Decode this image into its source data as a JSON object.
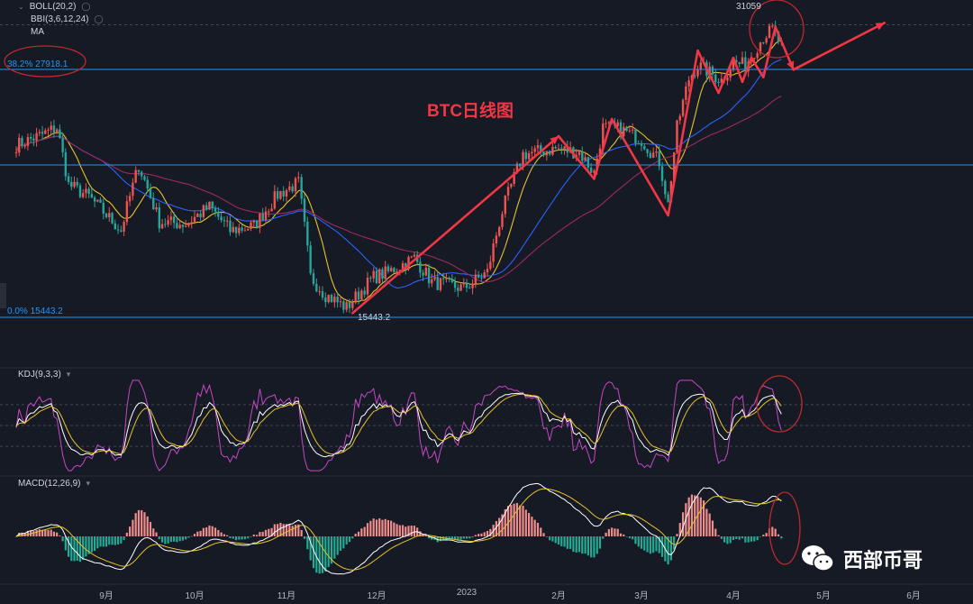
{
  "indicators": {
    "boll": "BOLL(20,2)",
    "bbi": "BBI(3,6,12,24)",
    "ma": "MA",
    "kdj": "KDJ(9,3,3)",
    "macd": "MACD(12,26,9)"
  },
  "annotation": {
    "title": "BTC日线图",
    "high_label": "31059",
    "low_label": "15443.2",
    "fib_382": "38.2% 27918.1",
    "fib_0": "0.0% 15443.2",
    "watermark": "西部币哥"
  },
  "colors": {
    "up": "#ef5350",
    "down": "#26a69a",
    "boll_mid": "#e6c229",
    "bbi": "#2962ff",
    "ma": "#9c2a5d",
    "fib": "#2196f3",
    "annotation": "#f23645",
    "k": "#ffffff",
    "d": "#e6c229",
    "j": "#c548c5"
  },
  "chart_data": {
    "type": "candlestick",
    "x_ticks": [
      "9月",
      "10月",
      "11月",
      "12月",
      "2023",
      "2月",
      "3月",
      "4月",
      "5月",
      "6月"
    ],
    "fib_levels": [
      {
        "label": "38.2%",
        "value": 27918.1
      },
      {
        "label": "0.0%",
        "value": 15443.2
      }
    ],
    "high": 31059,
    "low": 15443.2,
    "close_path": [
      [
        "2022-08-01",
        23300
      ],
      [
        "2022-08-10",
        23900
      ],
      [
        "2022-08-15",
        24300
      ],
      [
        "2022-08-19",
        21200
      ],
      [
        "2022-08-26",
        20600
      ],
      [
        "2022-09-06",
        19000
      ],
      [
        "2022-09-12",
        22200
      ],
      [
        "2022-09-19",
        19400
      ],
      [
        "2022-09-28",
        19300
      ],
      [
        "2022-10-06",
        20100
      ],
      [
        "2022-10-13",
        19000
      ],
      [
        "2022-10-21",
        19200
      ],
      [
        "2022-10-29",
        20700
      ],
      [
        "2022-11-05",
        21300
      ],
      [
        "2022-11-09",
        17000
      ],
      [
        "2022-11-14",
        16300
      ],
      [
        "2022-11-21",
        15800
      ],
      [
        "2022-11-30",
        17000
      ],
      [
        "2022-12-05",
        17200
      ],
      [
        "2022-12-14",
        17800
      ],
      [
        "2022-12-20",
        16800
      ],
      [
        "2022-12-31",
        16550
      ],
      [
        "2023-01-08",
        17200
      ],
      [
        "2023-01-13",
        19900
      ],
      [
        "2023-01-20",
        22800
      ],
      [
        "2023-01-31",
        23100
      ],
      [
        "2023-02-08",
        22900
      ],
      [
        "2023-02-13",
        21800
      ],
      [
        "2023-02-16",
        24300
      ],
      [
        "2023-02-22",
        24200
      ],
      [
        "2023-03-01",
        23600
      ],
      [
        "2023-03-07",
        22400
      ],
      [
        "2023-03-10",
        20200
      ],
      [
        "2023-03-13",
        24300
      ],
      [
        "2023-03-17",
        27300
      ],
      [
        "2023-03-20",
        28200
      ],
      [
        "2023-03-28",
        27200
      ],
      [
        "2023-04-01",
        28400
      ],
      [
        "2023-04-05",
        28200
      ],
      [
        "2023-04-11",
        30200
      ],
      [
        "2023-04-14",
        30700
      ],
      [
        "2023-04-17",
        29500
      ]
    ],
    "ylim": [
      14500,
      31600
    ],
    "kdj_range": [
      -20,
      120
    ],
    "macd_range": [
      -1300,
      1300
    ],
    "arrows": [
      [
        [
          "2022-11-23",
          15600
        ],
        [
          "2023-02-01",
          23800
        ]
      ],
      [
        [
          "2023-02-01",
          23800
        ],
        [
          "2023-02-13",
          21500
        ]
      ],
      [
        [
          "2023-02-13",
          21500
        ],
        [
          "2023-02-19",
          24800
        ]
      ],
      [
        [
          "2023-02-19",
          24800
        ],
        [
          "2023-03-10",
          19700
        ]
      ],
      [
        [
          "2023-03-10",
          19700
        ],
        [
          "2023-03-20",
          29200
        ]
      ],
      [
        [
          "2023-03-20",
          29200
        ],
        [
          "2023-03-27",
          26400
        ]
      ],
      [
        [
          "2023-03-27",
          26400
        ],
        [
          "2023-04-01",
          28700
        ]
      ],
      [
        [
          "2023-04-01",
          28700
        ],
        [
          "2023-04-04",
          27100
        ]
      ],
      [
        [
          "2023-04-04",
          27100
        ],
        [
          "2023-04-07",
          28700
        ]
      ],
      [
        [
          "2023-04-07",
          28700
        ],
        [
          "2023-04-11",
          27400
        ]
      ],
      [
        [
          "2023-04-11",
          27400
        ],
        [
          "2023-04-15",
          30900
        ]
      ],
      [
        [
          "2023-04-15",
          30900
        ],
        [
          "2023-04-21",
          27900
        ]
      ],
      [
        [
          "2023-04-21",
          27900
        ],
        [
          "2023-05-22",
          31200
        ]
      ]
    ]
  }
}
